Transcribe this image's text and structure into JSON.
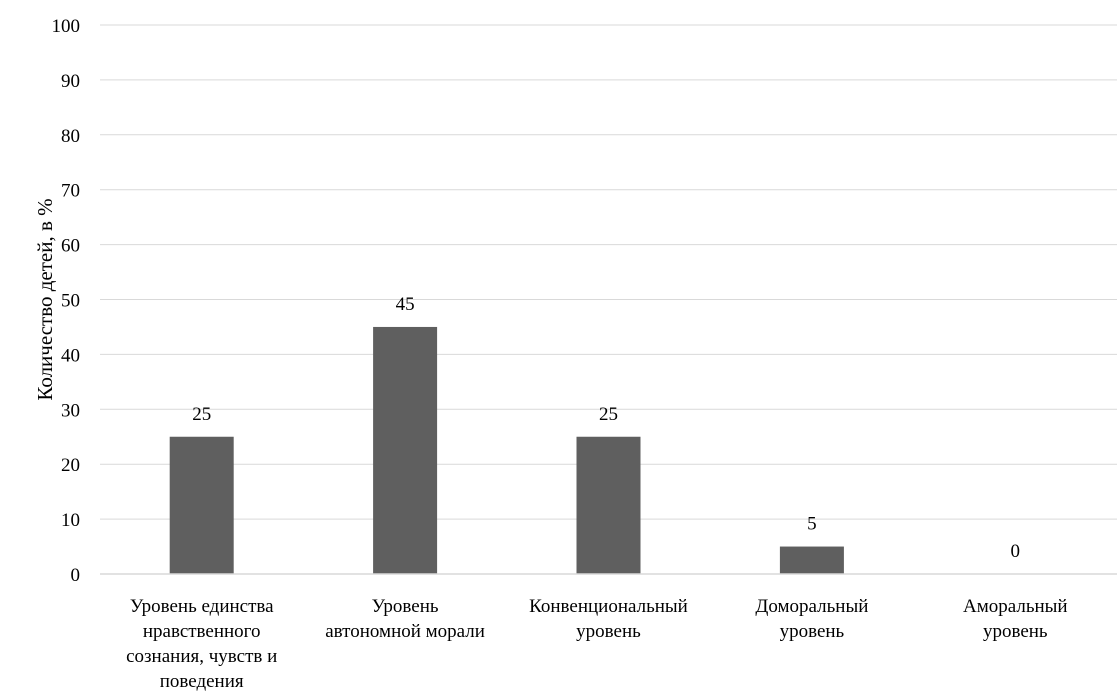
{
  "chart_data": {
    "type": "bar",
    "categories": [
      [
        "Уровень единства",
        "нравственного",
        "сознания, чувств и",
        "поведения"
      ],
      [
        "Уровень",
        "автономной морали"
      ],
      [
        "Конвенциональный",
        "уровень"
      ],
      [
        "Доморальный",
        "уровень"
      ],
      [
        "Аморальный",
        "уровень"
      ]
    ],
    "values": [
      25,
      45,
      25,
      5,
      0
    ],
    "title": "",
    "xlabel": "",
    "ylabel": "Количество детей, в %",
    "ylim": [
      0,
      100
    ],
    "yticks": [
      0,
      10,
      20,
      30,
      40,
      50,
      60,
      70,
      80,
      90,
      100
    ],
    "grid": true,
    "legend": "none",
    "data_labels": true,
    "bar_color": "#5f5f5f",
    "grid_color": "#d9d9d9"
  }
}
